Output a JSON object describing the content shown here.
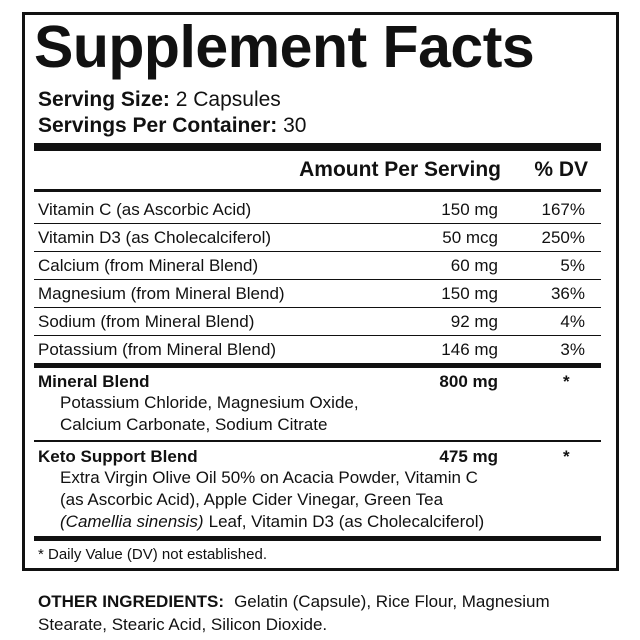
{
  "title": "Supplement Facts",
  "serving": {
    "size_label": "Serving Size:",
    "size_value": "2 Capsules",
    "per_container_label": "Servings Per Container:",
    "per_container_value": "30"
  },
  "header": {
    "amount": "Amount Per Serving",
    "dv": "% DV"
  },
  "rows": [
    [
      "Vitamin C (as Ascorbic Acid)",
      "150 mg",
      "167%"
    ],
    [
      "Vitamin D3 (as Cholecalciferol)",
      "50 mcg",
      "250%"
    ],
    [
      "Calcium (from Mineral Blend)",
      "60 mg",
      "5%"
    ],
    [
      "Magnesium (from Mineral Blend)",
      "150 mg",
      "36%"
    ],
    [
      "Sodium (from Mineral Blend)",
      "92 mg",
      "4%"
    ],
    [
      "Potassium (from Mineral Blend)",
      "146 mg",
      "3%"
    ]
  ],
  "mineral_blend": {
    "name": "Mineral Blend",
    "amount": "800 mg",
    "dv": "*",
    "lines": [
      "Potassium Chloride, Magnesium Oxide,",
      "Calcium Carbonate, Sodium Citrate"
    ]
  },
  "keto_blend": {
    "name": "Keto Support Blend",
    "amount": "475 mg",
    "dv": "*",
    "lines": [
      "Extra Virgin Olive Oil 50% on Acacia Powder, Vitamin C",
      "(as Ascorbic Acid), Apple Cider Vinegar, Green Tea"
    ],
    "last_line_italic": "(Camellia sinensis)",
    "last_line_rest": "Leaf, Vitamin D3 (as Cholecalciferol)"
  },
  "footnote": "* Daily Value (DV) not established.",
  "other": {
    "label": "OTHER INGREDIENTS:",
    "lines": [
      "Gelatin (Capsule), Rice Flour, Magnesium",
      "Stearate, Stearic Acid, Silicon Dioxide."
    ]
  }
}
